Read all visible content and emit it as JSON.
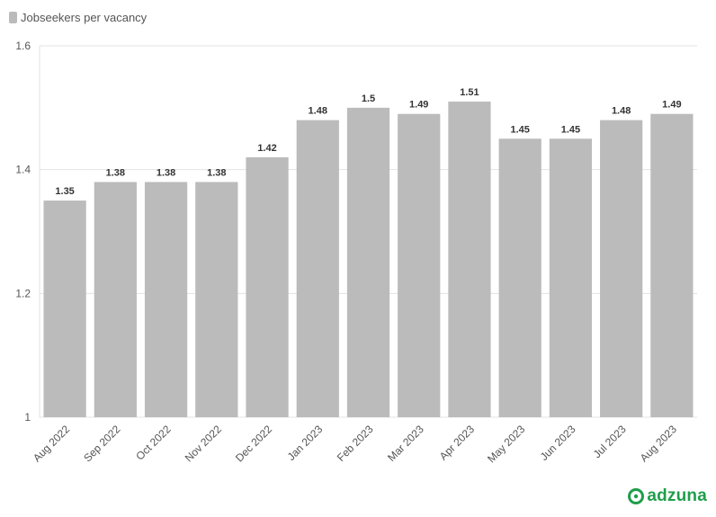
{
  "chart_data": {
    "type": "bar",
    "categories": [
      "Aug 2022",
      "Sep 2022",
      "Oct 2022",
      "Nov 2022",
      "Dec 2022",
      "Jan 2023",
      "Feb 2023",
      "Mar 2023",
      "Apr 2023",
      "May 2023",
      "Jun 2023",
      "Jul 2023",
      "Aug 2023"
    ],
    "series": [
      {
        "name": "Jobseekers per vacancy",
        "values": [
          1.35,
          1.38,
          1.38,
          1.38,
          1.42,
          1.48,
          1.5,
          1.49,
          1.51,
          1.45,
          1.45,
          1.48,
          1.49
        ],
        "color": "#bbbbbb"
      }
    ],
    "data_labels": [
      "1.35",
      "1.38",
      "1.38",
      "1.38",
      "1.42",
      "1.48",
      "1.5",
      "1.49",
      "1.51",
      "1.45",
      "1.45",
      "1.48",
      "1.49"
    ],
    "ylim": [
      1,
      1.6
    ],
    "yticks": [
      1,
      1.2,
      1.4,
      1.6
    ],
    "ytick_labels": [
      "1",
      "1.2",
      "1.4",
      "1.6"
    ],
    "grid": true,
    "legend_position": "top-left",
    "xtick_rotation": -45
  },
  "brand": {
    "name": "adzuna",
    "color": "#1f9e4a",
    "icon": "adzuna-logo-icon"
  }
}
